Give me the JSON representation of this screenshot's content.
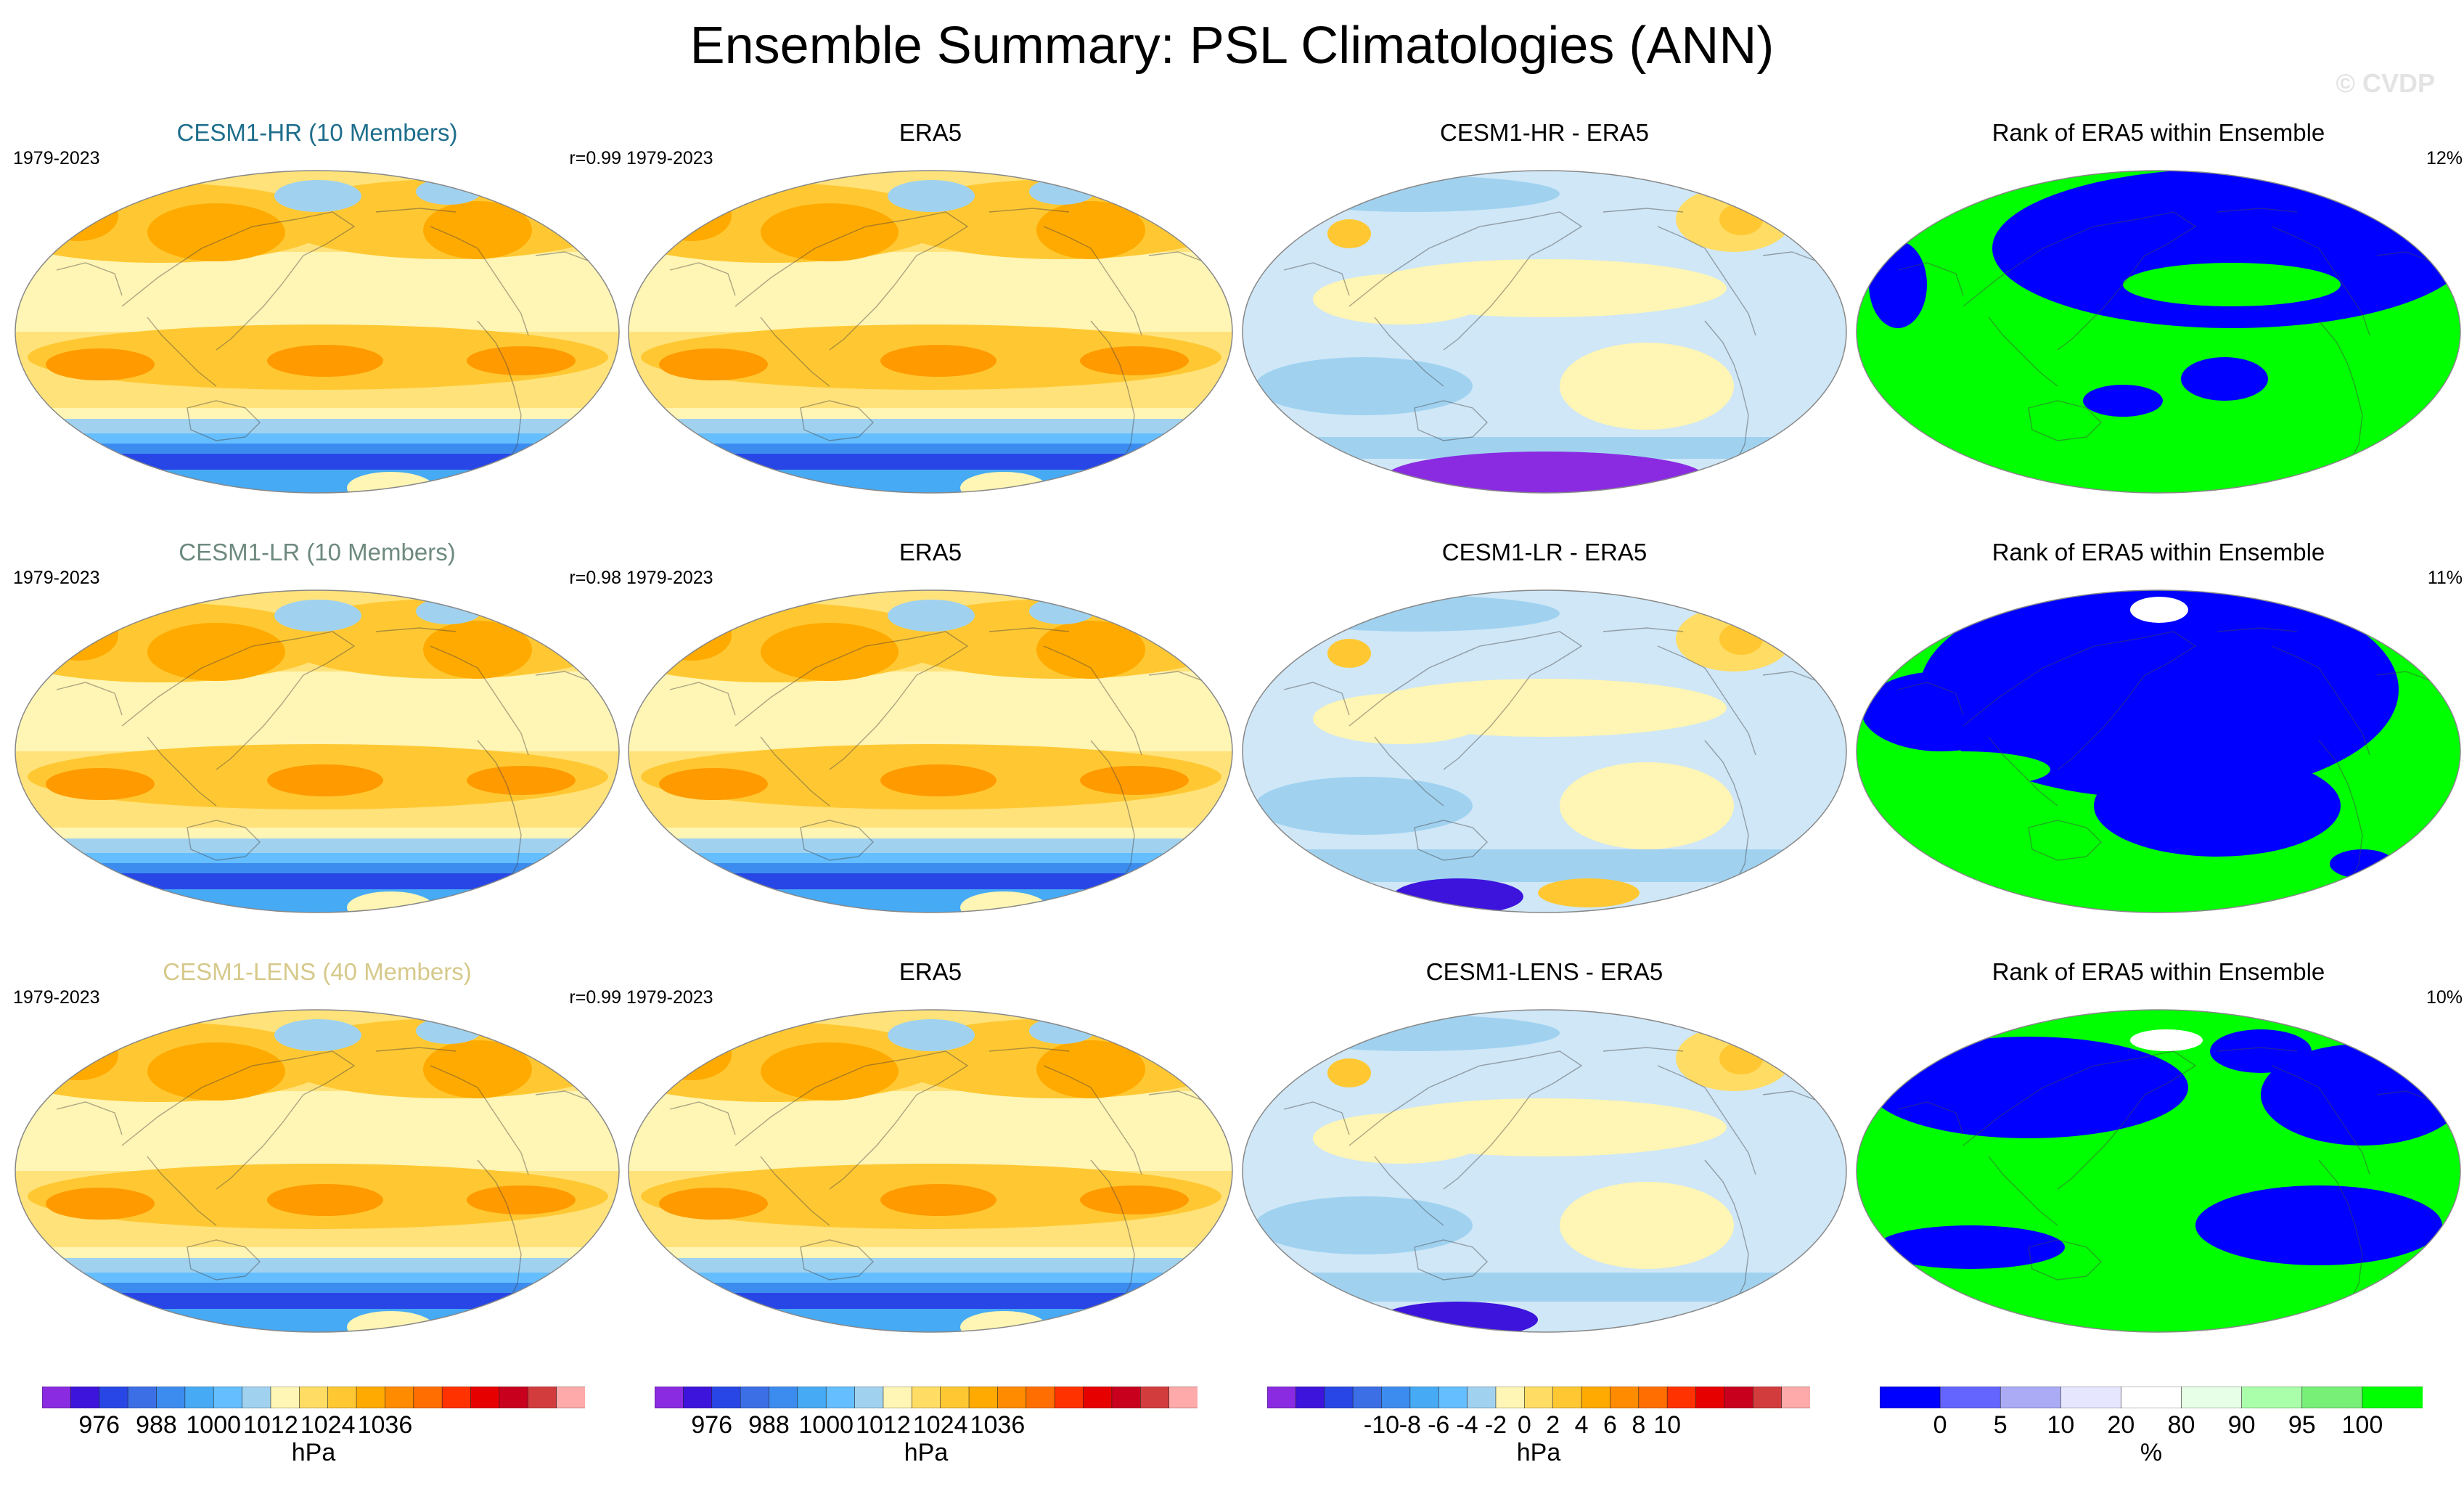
{
  "title": "Ensemble Summary: PSL Climatologies (ANN)",
  "watermark": "© CVDP",
  "rows": [
    {
      "panels": [
        {
          "title": "CESM1-HR (10 Members)",
          "title_color": "#1e6e8c",
          "left": "1979-2023",
          "right": "r=0.99",
          "kind": "psl"
        },
        {
          "title": "ERA5",
          "title_color": "#000000",
          "left": "1979-2023",
          "right": "",
          "kind": "psl"
        },
        {
          "title": "CESM1-HR - ERA5",
          "title_color": "#000000",
          "left": "",
          "right": "",
          "kind": "diff"
        },
        {
          "title": "Rank of ERA5 within Ensemble",
          "title_color": "#000000",
          "left": "",
          "right": "12%",
          "kind": "rank"
        }
      ]
    },
    {
      "panels": [
        {
          "title": "CESM1-LR (10 Members)",
          "title_color": "#6e8a7e",
          "left": "1979-2023",
          "right": "r=0.98",
          "kind": "psl"
        },
        {
          "title": "ERA5",
          "title_color": "#000000",
          "left": "1979-2023",
          "right": "",
          "kind": "psl"
        },
        {
          "title": "CESM1-LR - ERA5",
          "title_color": "#000000",
          "left": "",
          "right": "",
          "kind": "diff"
        },
        {
          "title": "Rank of ERA5 within Ensemble",
          "title_color": "#000000",
          "left": "",
          "right": "11%",
          "kind": "rank"
        }
      ]
    },
    {
      "panels": [
        {
          "title": "CESM1-LENS (40 Members)",
          "title_color": "#d6c98a",
          "left": "1979-2023",
          "right": "r=0.99",
          "kind": "psl"
        },
        {
          "title": "ERA5",
          "title_color": "#000000",
          "left": "1979-2023",
          "right": "",
          "kind": "psl"
        },
        {
          "title": "CESM1-LENS - ERA5",
          "title_color": "#000000",
          "left": "",
          "right": "",
          "kind": "diff"
        },
        {
          "title": "Rank of ERA5 within Ensemble",
          "title_color": "#000000",
          "left": "",
          "right": "10%",
          "kind": "rank"
        }
      ]
    }
  ],
  "colorbars": [
    {
      "unit": "hPa",
      "ticks": [
        "976",
        "988",
        "1000",
        "1012",
        "1024",
        "1036"
      ],
      "colors": [
        "#8a2be2",
        "#3c14dc",
        "#2846e6",
        "#3c6ee6",
        "#3c8cf0",
        "#46aaf5",
        "#64beff",
        "#a0d2f0",
        "#fff5b4",
        "#ffdc64",
        "#ffc832",
        "#ffaa00",
        "#ff8c00",
        "#ff6e00",
        "#ff3200",
        "#e60000",
        "#c8001e",
        "#d23c3c",
        "#ffaaaa"
      ]
    },
    {
      "unit": "hPa",
      "ticks": [
        "976",
        "988",
        "1000",
        "1012",
        "1024",
        "1036"
      ],
      "colors": [
        "#8a2be2",
        "#3c14dc",
        "#2846e6",
        "#3c6ee6",
        "#3c8cf0",
        "#46aaf5",
        "#64beff",
        "#a0d2f0",
        "#fff5b4",
        "#ffdc64",
        "#ffc832",
        "#ffaa00",
        "#ff8c00",
        "#ff6e00",
        "#ff3200",
        "#e60000",
        "#c8001e",
        "#d23c3c",
        "#ffaaaa"
      ]
    },
    {
      "unit": "hPa",
      "ticks": [
        "-10",
        "-8",
        "-6",
        "-4",
        "-2",
        "0",
        "2",
        "4",
        "6",
        "8",
        "10"
      ],
      "colors": [
        "#8a2be2",
        "#3c14dc",
        "#2846e6",
        "#3c6ee6",
        "#3c8cf0",
        "#46aaf5",
        "#64beff",
        "#a0d2f0",
        "#fff5b4",
        "#ffdc64",
        "#ffc832",
        "#ffaa00",
        "#ff8c00",
        "#ff6e00",
        "#ff3200",
        "#e60000",
        "#c8001e",
        "#d23c3c",
        "#ffaaaa"
      ]
    },
    {
      "unit": "%",
      "ticks": [
        "0",
        "5",
        "10",
        "20",
        "80",
        "90",
        "95",
        "100"
      ],
      "colors": [
        "#0000ff",
        "#6464ff",
        "#aaaaf5",
        "#e6e6ff",
        "#ffffff",
        "#e6ffe6",
        "#aaffaa",
        "#78f078",
        "#00ff00"
      ]
    }
  ]
}
